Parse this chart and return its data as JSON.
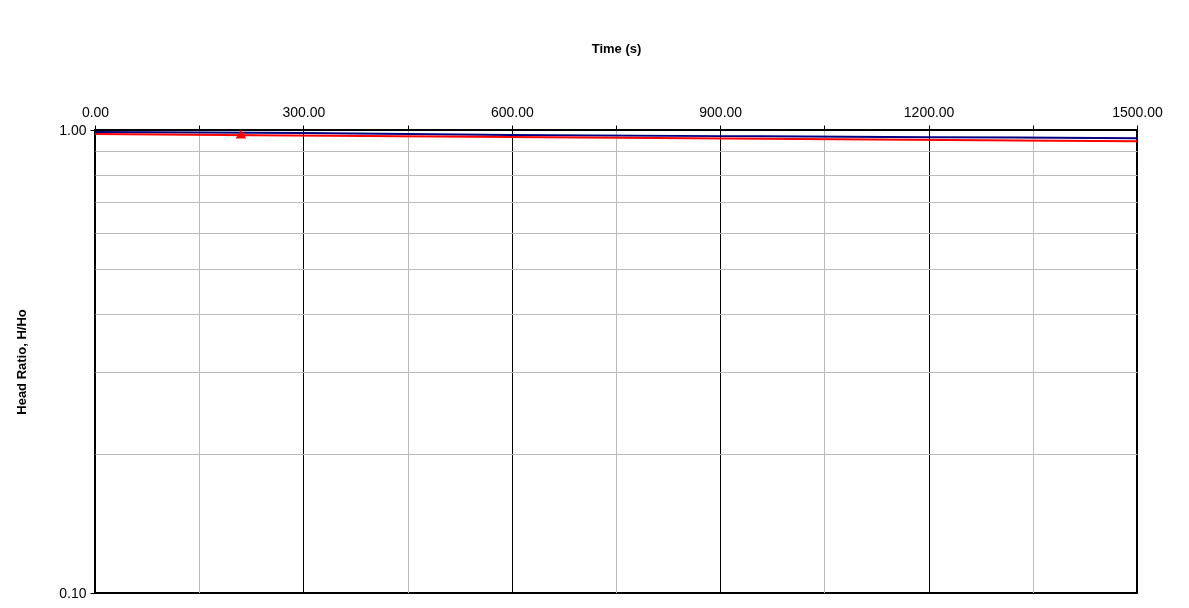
{
  "chart_data": {
    "type": "line",
    "xlabel": "Time (s)",
    "ylabel": "Head Ratio, H/Ho",
    "log": "y",
    "grid": true,
    "xlim": [
      0,
      1500
    ],
    "ylim": [
      0.1,
      1
    ],
    "xticks": [
      {
        "value": 0,
        "label": "0.00"
      },
      {
        "value": 150,
        "label": null
      },
      {
        "value": 300,
        "label": "300.00"
      },
      {
        "value": 450,
        "label": null
      },
      {
        "value": 600,
        "label": "600.00"
      },
      {
        "value": 750,
        "label": null
      },
      {
        "value": 900,
        "label": "900.00"
      },
      {
        "value": 1050,
        "label": null
      },
      {
        "value": 1200,
        "label": "1200.00"
      },
      {
        "value": 1350,
        "label": null
      },
      {
        "value": 1500,
        "label": "1500.00"
      }
    ],
    "yticks": [
      {
        "value": 0.1,
        "label": "0.10"
      },
      {
        "value": 0.2,
        "label": null
      },
      {
        "value": 0.3,
        "label": null
      },
      {
        "value": 0.4,
        "label": null
      },
      {
        "value": 0.5,
        "label": null
      },
      {
        "value": 0.6,
        "label": null
      },
      {
        "value": 0.7,
        "label": null
      },
      {
        "value": 0.8,
        "label": null
      },
      {
        "value": 0.9,
        "label": null
      },
      {
        "value": 1,
        "label": "1.00"
      }
    ],
    "series": [
      {
        "type": "line",
        "color": "#000080",
        "x": [
          0,
          300,
          600,
          900,
          1200,
          1500
        ],
        "values": [
          0.99,
          0.985,
          0.975,
          0.97,
          0.965,
          0.96
        ]
      },
      {
        "type": "line",
        "color": "#ff0000",
        "x": [
          0,
          1500
        ],
        "values": [
          0.98,
          0.945
        ]
      },
      {
        "type": "scatter",
        "color": "#ff0000",
        "marker": "triangle",
        "x": [
          210
        ],
        "values": [
          0.98
        ]
      }
    ]
  }
}
